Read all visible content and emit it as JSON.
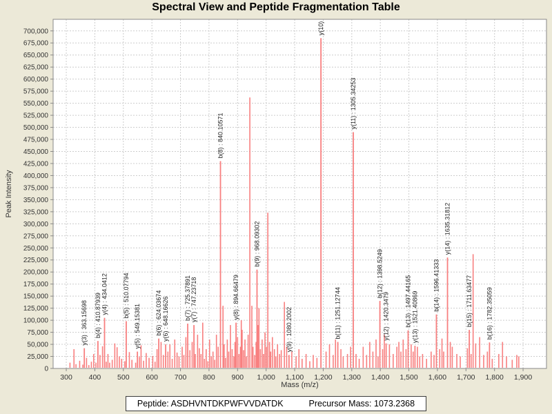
{
  "header": {
    "title": "Spectral View and Peptide Fragmentation Table"
  },
  "footer": {
    "peptide_label": "Peptide:",
    "peptide_value": "ASDHVNTDKPWFVVDATDK",
    "precursor_label": "Precursor Mass:",
    "precursor_value": "1073.2368"
  },
  "colors": {
    "background": "#ece9d8",
    "plot_background": "#ffffff",
    "plot_border": "#888888",
    "grid": "#cccccc",
    "peak": "#f87f7f",
    "tick_text": "#333333",
    "peak_label_text": "#222222",
    "title_text": "#000000"
  },
  "chart_data": {
    "type": "bar",
    "subtype": "stick-mass-spectrum",
    "title": "Spectral View and Peptide Fragmentation Table",
    "xlabel": "Mass (m/z)",
    "ylabel": "Peak Intensity",
    "xlim": [
      254,
      1982
    ],
    "ylim": [
      0,
      724000
    ],
    "x_tick_start": 300,
    "x_tick_end": 1900,
    "x_tick_step": 100,
    "y_tick_start": 0,
    "y_tick_end": 700000,
    "y_tick_step": 25000,
    "grid": "dashed",
    "legend": "none",
    "labeled_peaks": [
      {
        "ion": "y(3)",
        "mz": 363.15698,
        "intensity": 42000,
        "label": "y(3) : 363.15698"
      },
      {
        "ion": "b(4)",
        "mz": 410.87939,
        "intensity": 57000,
        "label": "b(4) : 410.87939"
      },
      {
        "ion": "y(4)",
        "mz": 434.0412,
        "intensity": 105000,
        "label": "y(4) : 434.0412"
      },
      {
        "ion": "b(5)",
        "mz": 510.07794,
        "intensity": 98000,
        "label": "b(5) : 510.07794"
      },
      {
        "ion": "y(5)",
        "mz": 549.15381,
        "intensity": 35000,
        "label": "y(5) : 549.15381"
      },
      {
        "ion": "b(6)",
        "mz": 624.03674,
        "intensity": 62000,
        "label": "b(6) : 624.03674"
      },
      {
        "ion": "y(6)",
        "mz": 648.16626,
        "intensity": 50000,
        "label": "y(6) : 648.16626"
      },
      {
        "ion": "b(7)",
        "mz": 725.37891,
        "intensity": 93000,
        "label": "b(7) : 725.37891"
      },
      {
        "ion": "y(7)",
        "mz": 747.23718,
        "intensity": 90000,
        "label": "y(7) : 747.23718"
      },
      {
        "ion": "b(8)",
        "mz": 840.10571,
        "intensity": 430000,
        "label": "b(8) : 840.10571"
      },
      {
        "ion": "y(8)",
        "mz": 894.66479,
        "intensity": 95000,
        "label": "y(8) : 894.66479"
      },
      {
        "ion": "b(9)",
        "mz": 968.09302,
        "intensity": 205000,
        "label": "b(9) : 968.09302"
      },
      {
        "ion": "y(9)",
        "mz": 1080.2002,
        "intensity": 28000,
        "label": "y(9) : 1080.2002"
      },
      {
        "ion": "y(10)",
        "mz": 1192.0,
        "intensity": 685000,
        "label": "y(10)"
      },
      {
        "ion": "b(11)",
        "mz": 1251.12744,
        "intensity": 55000,
        "label": "b(11) : 1251.12744"
      },
      {
        "ion": "y(11)",
        "mz": 1305.34253,
        "intensity": 490000,
        "label": "y(11) : 1305.34253"
      },
      {
        "ion": "b(12)",
        "mz": 1398.5249,
        "intensity": 140000,
        "label": "b(12) : 1398.5249"
      },
      {
        "ion": "y(12)",
        "mz": 1420.3479,
        "intensity": 52000,
        "label": "y(12) : 1420.3479"
      },
      {
        "ion": "b(13)",
        "mz": 1497.44165,
        "intensity": 79000,
        "label": "b(13) : 1497.44165"
      },
      {
        "ion": "y(13)",
        "mz": 1521.40869,
        "intensity": 47000,
        "label": "y(13) : 1521.40869"
      },
      {
        "ion": "b(14)",
        "mz": 1596.41333,
        "intensity": 112000,
        "label": "b(14) : 1596.41333"
      },
      {
        "ion": "y(14)",
        "mz": 1635.31812,
        "intensity": 230000,
        "label": "y(14) : 1635.31812"
      },
      {
        "ion": "b(15)",
        "mz": 1711.63477,
        "intensity": 80000,
        "label": "b(15) : 1711.63477"
      },
      {
        "ion": "b(16)",
        "mz": 1782.35059,
        "intensity": 54000,
        "label": "b(16) : 1782.35059"
      }
    ],
    "unlabeled_peaks": [
      [
        313,
        12000
      ],
      [
        327,
        40000
      ],
      [
        334,
        9000
      ],
      [
        347,
        16000
      ],
      [
        358,
        8000
      ],
      [
        371,
        22000
      ],
      [
        379,
        7000
      ],
      [
        388,
        14000
      ],
      [
        396,
        30000
      ],
      [
        404,
        12000
      ],
      [
        418,
        28000
      ],
      [
        427,
        46000
      ],
      [
        440,
        14000
      ],
      [
        446,
        30000
      ],
      [
        452,
        12000
      ],
      [
        461,
        18000
      ],
      [
        470,
        52000
      ],
      [
        478,
        44000
      ],
      [
        486,
        25000
      ],
      [
        494,
        20000
      ],
      [
        505,
        15000
      ],
      [
        521,
        34000
      ],
      [
        530,
        18000
      ],
      [
        543,
        12000
      ],
      [
        556,
        24000
      ],
      [
        562,
        48000
      ],
      [
        571,
        16000
      ],
      [
        580,
        32000
      ],
      [
        590,
        22000
      ],
      [
        603,
        26000
      ],
      [
        611,
        14000
      ],
      [
        618,
        40000
      ],
      [
        632,
        55000
      ],
      [
        640,
        28000
      ],
      [
        656,
        35000
      ],
      [
        663,
        50000
      ],
      [
        671,
        20000
      ],
      [
        680,
        60000
      ],
      [
        688,
        33000
      ],
      [
        695,
        25000
      ],
      [
        706,
        45000
      ],
      [
        712,
        28000
      ],
      [
        719,
        65000
      ],
      [
        733,
        38000
      ],
      [
        741,
        55000
      ],
      [
        752,
        30000
      ],
      [
        760,
        70000
      ],
      [
        766,
        42000
      ],
      [
        772,
        30000
      ],
      [
        778,
        95000
      ],
      [
        784,
        20000
      ],
      [
        790,
        40000
      ],
      [
        796,
        15000
      ],
      [
        802,
        60000
      ],
      [
        808,
        25000
      ],
      [
        814,
        35000
      ],
      [
        820,
        18000
      ],
      [
        826,
        70000
      ],
      [
        832,
        45000
      ],
      [
        849,
        130000
      ],
      [
        853,
        50000
      ],
      [
        858,
        22000
      ],
      [
        864,
        60000
      ],
      [
        869,
        35000
      ],
      [
        875,
        90000
      ],
      [
        881,
        40000
      ],
      [
        887,
        25000
      ],
      [
        891,
        55000
      ],
      [
        900,
        65000
      ],
      [
        905,
        30000
      ],
      [
        910,
        45000
      ],
      [
        913,
        100000
      ],
      [
        916,
        80000
      ],
      [
        921,
        38000
      ],
      [
        926,
        60000
      ],
      [
        931,
        25000
      ],
      [
        937,
        70000
      ],
      [
        943,
        562000
      ],
      [
        950,
        130000
      ],
      [
        954,
        45000
      ],
      [
        960,
        28000
      ],
      [
        965,
        55000
      ],
      [
        971,
        90000
      ],
      [
        975,
        125000
      ],
      [
        980,
        40000
      ],
      [
        986,
        60000
      ],
      [
        991,
        30000
      ],
      [
        996,
        75000
      ],
      [
        1001,
        45000
      ],
      [
        1006,
        323000
      ],
      [
        1012,
        55000
      ],
      [
        1016,
        35000
      ],
      [
        1022,
        65000
      ],
      [
        1029,
        40000
      ],
      [
        1034,
        25000
      ],
      [
        1040,
        50000
      ],
      [
        1047,
        30000
      ],
      [
        1053,
        38000
      ],
      [
        1064,
        138000
      ],
      [
        1072,
        45000
      ],
      [
        1090,
        35000
      ],
      [
        1105,
        25000
      ],
      [
        1115,
        40000
      ],
      [
        1126,
        20000
      ],
      [
        1140,
        30000
      ],
      [
        1153,
        15000
      ],
      [
        1165,
        28000
      ],
      [
        1178,
        22000
      ],
      [
        1210,
        35000
      ],
      [
        1222,
        50000
      ],
      [
        1235,
        28000
      ],
      [
        1243,
        60000
      ],
      [
        1262,
        40000
      ],
      [
        1270,
        25000
      ],
      [
        1285,
        30000
      ],
      [
        1296,
        45000
      ],
      [
        1315,
        30000
      ],
      [
        1326,
        20000
      ],
      [
        1340,
        45000
      ],
      [
        1352,
        28000
      ],
      [
        1363,
        55000
      ],
      [
        1374,
        35000
      ],
      [
        1385,
        60000
      ],
      [
        1392,
        25000
      ],
      [
        1408,
        40000
      ],
      [
        1414,
        70000
      ],
      [
        1432,
        50000
      ],
      [
        1445,
        30000
      ],
      [
        1458,
        45000
      ],
      [
        1465,
        55000
      ],
      [
        1472,
        35000
      ],
      [
        1480,
        60000
      ],
      [
        1490,
        40000
      ],
      [
        1508,
        50000
      ],
      [
        1515,
        35000
      ],
      [
        1530,
        45000
      ],
      [
        1538,
        25000
      ],
      [
        1548,
        30000
      ],
      [
        1562,
        20000
      ],
      [
        1578,
        35000
      ],
      [
        1588,
        28000
      ],
      [
        1608,
        40000
      ],
      [
        1616,
        62000
      ],
      [
        1622,
        35000
      ],
      [
        1645,
        55000
      ],
      [
        1652,
        45000
      ],
      [
        1668,
        30000
      ],
      [
        1680,
        25000
      ],
      [
        1705,
        42000
      ],
      [
        1718,
        30000
      ],
      [
        1725,
        237000
      ],
      [
        1734,
        52000
      ],
      [
        1748,
        65000
      ],
      [
        1762,
        28000
      ],
      [
        1775,
        35000
      ],
      [
        1792,
        20000
      ],
      [
        1815,
        30000
      ],
      [
        1828,
        55000
      ],
      [
        1842,
        25000
      ],
      [
        1862,
        18000
      ],
      [
        1878,
        28000
      ],
      [
        1885,
        25000
      ]
    ]
  }
}
